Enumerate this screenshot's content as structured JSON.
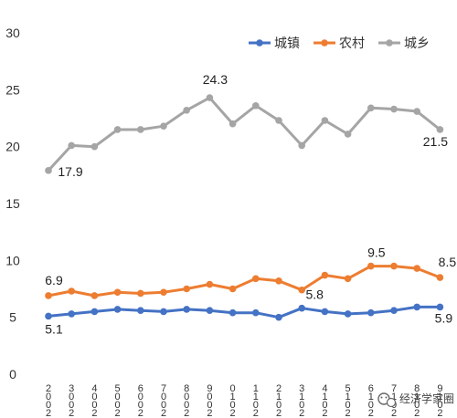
{
  "chart_data": {
    "type": "line",
    "ylim": [
      0,
      30
    ],
    "yticks": [
      0,
      5,
      10,
      15,
      20,
      25,
      30
    ],
    "grid": false,
    "legend_position": "top-right",
    "categories": [
      "2002",
      "2003",
      "2004",
      "2005",
      "2006",
      "2007",
      "2008",
      "2009",
      "2010",
      "2011",
      "2012",
      "2013",
      "2014",
      "2015",
      "2016",
      "2017",
      "2018",
      "2019"
    ],
    "tick_labels": [
      [
        "2",
        "0",
        "0",
        "2"
      ],
      [
        "3",
        "0",
        "0",
        "2"
      ],
      [
        "4",
        "0",
        "0",
        "2"
      ],
      [
        "5",
        "0",
        "0",
        "2"
      ],
      [
        "6",
        "0",
        "0",
        "2"
      ],
      [
        "7",
        "0",
        "0",
        "2"
      ],
      [
        "8",
        "0",
        "0",
        "2"
      ],
      [
        "9",
        "0",
        "0",
        "2"
      ],
      [
        "0",
        "1",
        "0",
        "2"
      ],
      [
        "1",
        "1",
        "0",
        "2"
      ],
      [
        "2",
        "1",
        "0",
        "2"
      ],
      [
        "3",
        "1",
        "0",
        "2"
      ],
      [
        "4",
        "1",
        "0",
        "2"
      ],
      [
        "5",
        "1",
        "0",
        "2"
      ],
      [
        "6",
        "1",
        "0",
        "2"
      ],
      [
        "7",
        "1",
        "0",
        "2"
      ],
      [
        "8",
        "1",
        "0",
        "2"
      ],
      [
        "9",
        "1",
        "0",
        "2"
      ]
    ],
    "series": [
      {
        "name": "城镇",
        "color": "#4472c4",
        "values": [
          5.1,
          5.3,
          5.5,
          5.7,
          5.6,
          5.5,
          5.7,
          5.6,
          5.4,
          5.4,
          5.0,
          5.8,
          5.5,
          5.3,
          5.4,
          5.6,
          5.9,
          5.9
        ]
      },
      {
        "name": "农村",
        "color": "#ed7d31",
        "values": [
          6.9,
          7.3,
          6.9,
          7.2,
          7.1,
          7.2,
          7.5,
          7.9,
          7.5,
          8.4,
          8.2,
          7.4,
          8.7,
          8.4,
          9.5,
          9.5,
          9.3,
          8.5
        ]
      },
      {
        "name": "城乡",
        "color": "#a5a5a5",
        "values": [
          17.9,
          20.1,
          20.0,
          21.5,
          21.5,
          21.8,
          23.2,
          24.3,
          22.0,
          23.6,
          22.3,
          20.1,
          22.3,
          21.1,
          23.4,
          23.3,
          23.1,
          21.5
        ]
      }
    ],
    "data_labels": [
      {
        "series": 2,
        "index": 0,
        "text": "17.9"
      },
      {
        "series": 2,
        "index": 7,
        "text": "24.3"
      },
      {
        "series": 2,
        "index": 17,
        "text": "21.5"
      },
      {
        "series": 1,
        "index": 0,
        "text": "6.9"
      },
      {
        "series": 1,
        "index": 14,
        "text": "9.5"
      },
      {
        "series": 1,
        "index": 17,
        "text": "8.5"
      },
      {
        "series": 0,
        "index": 0,
        "text": "5.1"
      },
      {
        "series": 0,
        "index": 11,
        "text": "5.8"
      },
      {
        "series": 0,
        "index": 17,
        "text": "5.9"
      }
    ]
  },
  "watermark": {
    "text": "经济学家圈",
    "icon": "wechat-icon"
  }
}
